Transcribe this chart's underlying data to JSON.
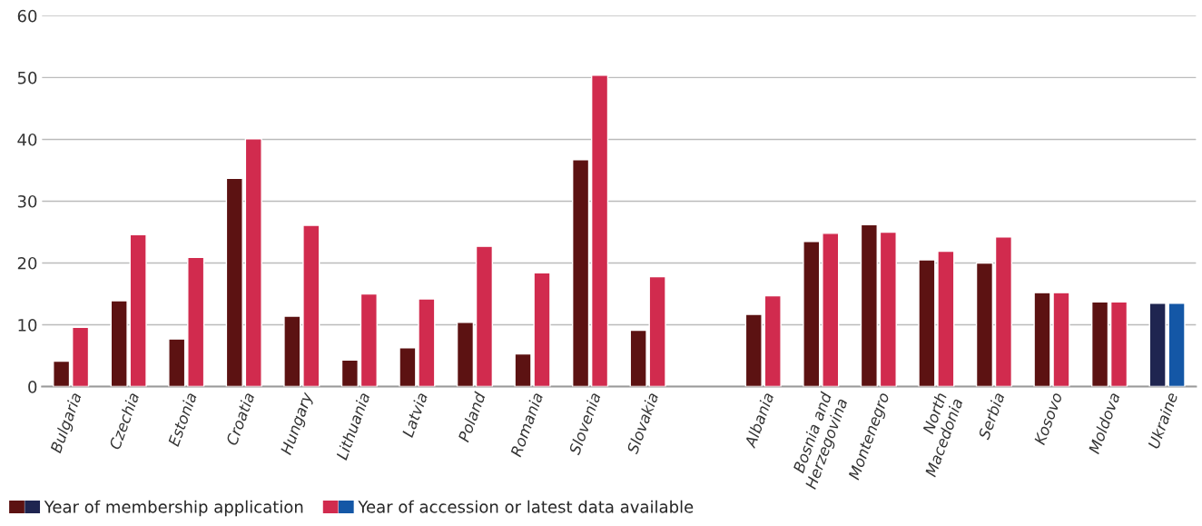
{
  "chart_data": {
    "type": "bar",
    "categories": [
      "Bulgaria",
      "Czechia",
      "Estonia",
      "Croatia",
      "Hungary",
      "Lithuania",
      "Latvia",
      "Poland",
      "Romania",
      "Slovenia",
      "Slovakia",
      null,
      "Albania",
      "Bosnia and\nHerzegovina",
      "Montenegro",
      "North\nMacedonia",
      "Serbia",
      "Kosovo",
      "Moldova",
      "Ukraine"
    ],
    "series": [
      {
        "name": "Year of membership application",
        "color": "#5c1212",
        "colors": [
          "#5c1212",
          "#5c1212",
          "#5c1212",
          "#5c1212",
          "#5c1212",
          "#5c1212",
          "#5c1212",
          "#5c1212",
          "#5c1212",
          "#5c1212",
          "#5c1212",
          "#5c1212",
          "#5c1212",
          "#5c1212",
          "#5c1212",
          "#5c1212",
          "#5c1212",
          "#5c1212",
          "#5c1212",
          "#1f2550"
        ],
        "values": [
          4.1,
          13.9,
          7.7,
          33.7,
          11.4,
          4.3,
          6.3,
          10.4,
          5.3,
          36.7,
          9.1,
          null,
          11.7,
          23.5,
          26.2,
          20.5,
          20.0,
          15.2,
          13.7,
          13.5
        ]
      },
      {
        "name": "Year of accession or latest data available",
        "color": "#d12b4e",
        "colors": [
          "#d12b4e",
          "#d12b4e",
          "#d12b4e",
          "#d12b4e",
          "#d12b4e",
          "#d12b4e",
          "#d12b4e",
          "#d12b4e",
          "#d12b4e",
          "#d12b4e",
          "#d12b4e",
          "#d12b4e",
          "#d12b4e",
          "#d12b4e",
          "#d12b4e",
          "#d12b4e",
          "#d12b4e",
          "#d12b4e",
          "#d12b4e",
          "#1457a6"
        ],
        "values": [
          9.6,
          24.6,
          20.9,
          40.1,
          26.1,
          15.0,
          14.2,
          22.7,
          18.4,
          50.4,
          17.8,
          null,
          14.7,
          24.8,
          25.0,
          21.9,
          24.2,
          15.2,
          13.7,
          13.5
        ]
      }
    ],
    "ylim": [
      0,
      60
    ],
    "yticks": [
      0,
      10,
      20,
      30,
      40,
      50,
      60
    ],
    "grid": "y",
    "legend": "bottom left"
  }
}
